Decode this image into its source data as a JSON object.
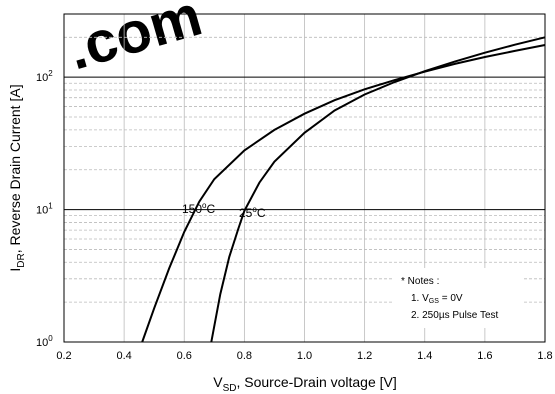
{
  "watermark": {
    "text": ".com",
    "color": "#d9242a"
  },
  "chart_data": {
    "type": "line",
    "xlabel": {
      "main": "V",
      "sub": "SD",
      "rest": ", Source-Drain voltage [V]"
    },
    "ylabel": {
      "main": "I",
      "sub": "DR",
      "rest": ", Reverse Drain Current [A]"
    },
    "xlim": [
      0.2,
      1.8
    ],
    "ylim": [
      1,
      300
    ],
    "yscale": "log",
    "xticks": [
      "0.2",
      "0.4",
      "0.6",
      "0.8",
      "1.0",
      "1.2",
      "1.4",
      "1.6",
      "1.8"
    ],
    "yticks": [
      {
        "value": 1,
        "base": "10",
        "exp": "0"
      },
      {
        "value": 10,
        "base": "10",
        "exp": "1"
      },
      {
        "value": 100,
        "base": "10",
        "exp": "2"
      }
    ],
    "grid": true,
    "series": [
      {
        "name": "150°C",
        "label_parts": {
          "num": "150",
          "sup": "o",
          "unit": "C"
        },
        "color": "#000000",
        "points": [
          [
            0.46,
            1.0
          ],
          [
            0.5,
            1.8
          ],
          [
            0.55,
            3.6
          ],
          [
            0.6,
            6.8
          ],
          [
            0.65,
            11.5
          ],
          [
            0.7,
            17
          ],
          [
            0.8,
            28
          ],
          [
            0.9,
            40
          ],
          [
            1.0,
            53
          ],
          [
            1.1,
            67
          ],
          [
            1.2,
            81
          ],
          [
            1.3,
            95
          ],
          [
            1.4,
            110
          ],
          [
            1.5,
            126
          ],
          [
            1.6,
            142
          ],
          [
            1.7,
            158
          ],
          [
            1.8,
            175
          ]
        ]
      },
      {
        "name": "25°C",
        "label_parts": {
          "num": "25",
          "sup": "o",
          "unit": "C"
        },
        "color": "#000000",
        "points": [
          [
            0.69,
            1.0
          ],
          [
            0.72,
            2.3
          ],
          [
            0.75,
            4.4
          ],
          [
            0.78,
            7.2
          ],
          [
            0.8,
            9.8
          ],
          [
            0.85,
            16
          ],
          [
            0.9,
            23
          ],
          [
            1.0,
            38
          ],
          [
            1.1,
            56
          ],
          [
            1.2,
            74
          ],
          [
            1.3,
            92
          ],
          [
            1.4,
            111
          ],
          [
            1.5,
            131
          ],
          [
            1.6,
            153
          ],
          [
            1.7,
            176
          ],
          [
            1.8,
            200
          ]
        ]
      }
    ],
    "notes": {
      "title": "* Notes :",
      "line1_parts": {
        "prefix": "1. V",
        "sub": "GS",
        "suffix": " = 0V"
      },
      "line2_parts": {
        "prefix": "2. 250",
        "micro": "µ",
        "suffix": "s Pulse Test"
      }
    }
  }
}
